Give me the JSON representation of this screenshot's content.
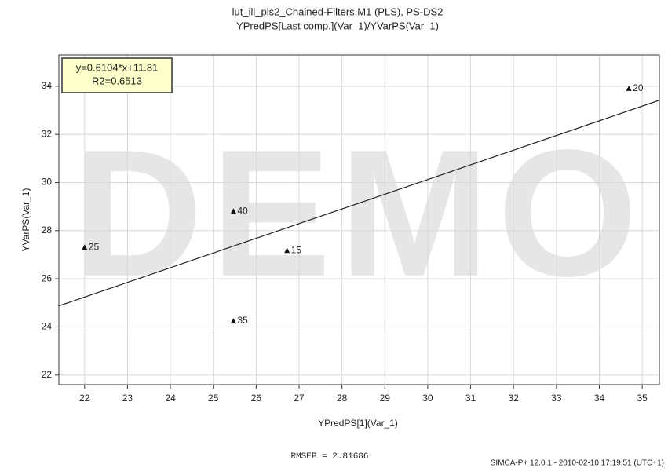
{
  "chart_data": {
    "type": "scatter",
    "title": "lut_ill_pls2_Chained-Filters.M1 (PLS), PS-DS2",
    "subtitle": "YPredPS[Last comp.](Var_1)/YVarPS(Var_1)",
    "x_label": "YPredPS[1](Var_1)",
    "y_label": "YVarPS(Var_1)",
    "watermark": "DEMO",
    "labels": [
      "20",
      "40",
      "25",
      "15",
      "35"
    ],
    "x": [
      34.69,
      25.47,
      22.0,
      26.72,
      25.47
    ],
    "values": [
      33.9,
      28.8,
      27.3,
      27.17,
      24.24
    ],
    "color": "#111111",
    "fit": {
      "equation": "y=0.6104*x+11.81",
      "r2": "R2=0.6513",
      "slope": 0.6104,
      "intercept": 11.81
    },
    "xlim": [
      21.4,
      35.4
    ],
    "ylim": [
      21.6,
      35.3
    ],
    "xticks": [
      22,
      23,
      24,
      25,
      26,
      27,
      28,
      29,
      30,
      31,
      32,
      33,
      34,
      35
    ],
    "yticks": [
      22,
      24,
      26,
      28,
      30,
      32,
      34
    ],
    "grid": true,
    "rmsep": "RMSEP = 2.81686",
    "footer": "SIMCA-P+ 12.0.1 - 2010-02-10 17:19:51 (UTC+1)"
  }
}
